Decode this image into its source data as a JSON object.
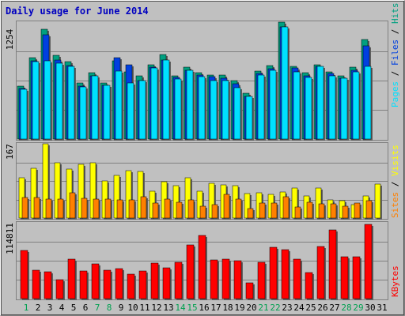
{
  "title": "Daily usage for June 2014",
  "colors": {
    "background": "#c0c0c0",
    "title": "#0000c0",
    "hits": "#00a080",
    "files": "#0040e0",
    "pages": "#00e0ff",
    "visits": "#ffff00",
    "sites": "#ff8000",
    "kbytes": "#ff0000",
    "weekend_day": "#00a050",
    "weekday_day": "#000000"
  },
  "chart_data": [
    {
      "type": "bar",
      "panel": "hits-files-pages",
      "x": [
        1,
        2,
        3,
        4,
        5,
        6,
        7,
        8,
        9,
        10,
        11,
        12,
        13,
        14,
        15,
        16,
        17,
        18,
        19,
        20,
        21,
        22,
        23,
        24,
        25,
        26,
        27,
        28,
        29,
        30,
        31
      ],
      "ymax_label": "1254",
      "ylim": [
        0,
        1254
      ],
      "axis_labels": {
        "pages": "Pages",
        "sep1": " / ",
        "files": "Files",
        "sep2": " / ",
        "hits": "Hits"
      },
      "series": [
        {
          "name": "Hits",
          "values": [
            570,
            870,
            1180,
            900,
            830,
            600,
            710,
            600,
            840,
            720,
            680,
            800,
            910,
            680,
            770,
            710,
            690,
            690,
            630,
            490,
            730,
            790,
            1254,
            780,
            710,
            800,
            720,
            680,
            770,
            1070,
            0
          ]
        },
        {
          "name": "Files",
          "values": [
            540,
            840,
            1120,
            850,
            790,
            570,
            680,
            580,
            870,
            800,
            630,
            770,
            850,
            660,
            740,
            690,
            670,
            650,
            590,
            460,
            700,
            750,
            1200,
            760,
            680,
            780,
            700,
            650,
            740,
            1000,
            0
          ]
        },
        {
          "name": "Pages",
          "values": [
            530,
            830,
            840,
            810,
            780,
            560,
            680,
            580,
            730,
            600,
            630,
            760,
            850,
            640,
            740,
            670,
            630,
            630,
            550,
            460,
            690,
            740,
            1200,
            720,
            660,
            780,
            680,
            650,
            720,
            780,
            0
          ]
        }
      ]
    },
    {
      "type": "bar",
      "panel": "visits-sites",
      "x": [
        1,
        2,
        3,
        4,
        5,
        6,
        7,
        8,
        9,
        10,
        11,
        12,
        13,
        14,
        15,
        16,
        17,
        18,
        19,
        20,
        21,
        22,
        23,
        24,
        25,
        26,
        27,
        28,
        29,
        30,
        31
      ],
      "ymax_label": "167",
      "ylim": [
        0,
        167
      ],
      "axis_labels": {
        "sites": "Sites",
        "sep": " / ",
        "visits": "Visits"
      },
      "series": [
        {
          "name": "Visits",
          "values": [
            90,
            112,
            167,
            124,
            110,
            121,
            124,
            83,
            96,
            106,
            105,
            60,
            82,
            72,
            90,
            61,
            78,
            74,
            72,
            55,
            56,
            54,
            58,
            68,
            49,
            68,
            40,
            39,
            31,
            50,
            76
          ]
        },
        {
          "name": "Sites",
          "values": [
            46,
            46,
            42,
            43,
            56,
            45,
            42,
            43,
            40,
            41,
            48,
            33,
            42,
            35,
            40,
            26,
            30,
            53,
            43,
            21,
            34,
            33,
            48,
            24,
            35,
            32,
            32,
            27,
            33,
            39,
            0
          ]
        }
      ]
    },
    {
      "type": "bar",
      "panel": "kbytes",
      "x": [
        1,
        2,
        3,
        4,
        5,
        6,
        7,
        8,
        9,
        10,
        11,
        12,
        13,
        14,
        15,
        16,
        17,
        18,
        19,
        20,
        21,
        22,
        23,
        24,
        25,
        26,
        27,
        28,
        29,
        30,
        31
      ],
      "ymax_label": "114811",
      "ylim": [
        0,
        114811
      ],
      "axis_labels": {
        "kbytes": "KBytes"
      },
      "series": [
        {
          "name": "KBytes",
          "values": [
            75000,
            44000,
            41000,
            29000,
            61000,
            43000,
            54000,
            44000,
            47000,
            38000,
            43000,
            55000,
            48000,
            56000,
            83000,
            98000,
            60000,
            61000,
            59000,
            24000,
            56000,
            80000,
            76000,
            61000,
            40000,
            81000,
            106000,
            65000,
            65000,
            114811,
            0
          ]
        }
      ]
    }
  ]
}
